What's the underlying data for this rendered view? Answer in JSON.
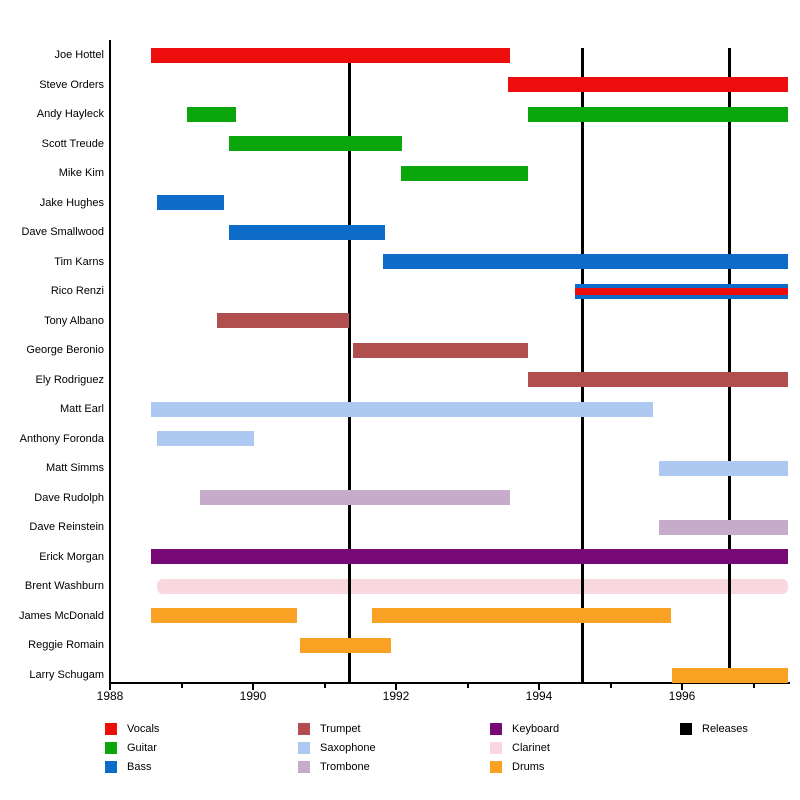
{
  "chart_data": {
    "type": "timeline",
    "description": "Band members tenure timeline (gantt-style) with instrument color coding and release marker lines",
    "x_axis": {
      "start": 1988,
      "end": 1997.5,
      "major_ticks": [
        1988,
        1990,
        1992,
        1994,
        1996
      ],
      "minor_ticks": [
        1989,
        1991,
        1993,
        1995,
        1997
      ],
      "grid": false
    },
    "releases": [
      1991.35,
      1994.61,
      1996.66
    ],
    "colors": {
      "vocals": "#ee0d0d",
      "guitar": "#0ba60b",
      "bass": "#0d6cc8",
      "trumpet": "#b14f4f",
      "saxophone": "#adc9f2",
      "trombone": "#c6abca",
      "keyboard": "#770977",
      "clarinet": "#f8d7de",
      "drums": "#f8a122",
      "releases": "#000000"
    },
    "members": [
      {
        "name": "Joe Hottel",
        "bars": [
          {
            "instrument": "vocals",
            "start": 1988.58,
            "end": 1993.59
          }
        ]
      },
      {
        "name": "Steve Orders",
        "bars": [
          {
            "instrument": "vocals",
            "start": 1993.57,
            "end": 1997.48
          }
        ]
      },
      {
        "name": "Andy Hayleck",
        "bars": [
          {
            "instrument": "guitar",
            "start": 1989.07,
            "end": 1989.76
          },
          {
            "instrument": "guitar",
            "start": 1993.85,
            "end": 1997.48
          }
        ]
      },
      {
        "name": "Scott Treude",
        "bars": [
          {
            "instrument": "guitar",
            "start": 1989.67,
            "end": 1992.09
          }
        ]
      },
      {
        "name": "Mike Kim",
        "bars": [
          {
            "instrument": "guitar",
            "start": 1992.07,
            "end": 1993.85
          }
        ]
      },
      {
        "name": "Jake Hughes",
        "bars": [
          {
            "instrument": "bass",
            "start": 1988.66,
            "end": 1989.59
          }
        ]
      },
      {
        "name": "Dave Smallwood",
        "bars": [
          {
            "instrument": "bass",
            "start": 1989.67,
            "end": 1991.85
          }
        ]
      },
      {
        "name": "Tim Karns",
        "bars": [
          {
            "instrument": "bass",
            "start": 1991.82,
            "end": 1997.48
          }
        ]
      },
      {
        "name": "Rico Renzi",
        "bars": [
          {
            "instrument": "bass",
            "start": 1994.5,
            "end": 1997.48
          },
          {
            "instrument": "vocals",
            "start": 1994.5,
            "end": 1997.48,
            "overlay": true
          }
        ]
      },
      {
        "name": "Tony Albano",
        "bars": [
          {
            "instrument": "trumpet",
            "start": 1989.49,
            "end": 1991.34
          }
        ]
      },
      {
        "name": "George Beronio",
        "bars": [
          {
            "instrument": "trumpet",
            "start": 1991.4,
            "end": 1993.85
          }
        ]
      },
      {
        "name": "Ely Rodriguez",
        "bars": [
          {
            "instrument": "trumpet",
            "start": 1993.85,
            "end": 1997.48
          }
        ]
      },
      {
        "name": "Matt Earl",
        "bars": [
          {
            "instrument": "saxophone",
            "start": 1988.58,
            "end": 1995.6
          }
        ]
      },
      {
        "name": "Anthony Foronda",
        "bars": [
          {
            "instrument": "saxophone",
            "start": 1988.66,
            "end": 1990.02
          }
        ]
      },
      {
        "name": "Matt Simms",
        "bars": [
          {
            "instrument": "saxophone",
            "start": 1995.68,
            "end": 1997.48
          }
        ]
      },
      {
        "name": "Dave Rudolph",
        "bars": [
          {
            "instrument": "trombone",
            "start": 1989.26,
            "end": 1993.59
          }
        ]
      },
      {
        "name": "Dave Reinstein",
        "bars": [
          {
            "instrument": "trombone",
            "start": 1995.68,
            "end": 1997.48
          }
        ]
      },
      {
        "name": "Erick Morgan",
        "bars": [
          {
            "instrument": "keyboard",
            "start": 1988.58,
            "end": 1997.48
          }
        ]
      },
      {
        "name": "Brent Washburn",
        "bars": [
          {
            "instrument": "clarinet",
            "start": 1988.66,
            "end": 1997.48
          }
        ]
      },
      {
        "name": "James McDonald",
        "bars": [
          {
            "instrument": "drums",
            "start": 1988.58,
            "end": 1990.62
          },
          {
            "instrument": "drums",
            "start": 1991.66,
            "end": 1995.85
          }
        ]
      },
      {
        "name": "Reggie Romain",
        "bars": [
          {
            "instrument": "drums",
            "start": 1990.66,
            "end": 1991.93
          }
        ]
      },
      {
        "name": "Larry Schugam",
        "bars": [
          {
            "instrument": "drums",
            "start": 1995.86,
            "end": 1997.48
          }
        ]
      }
    ],
    "legend": {
      "columns": [
        {
          "items": [
            {
              "label": "Vocals",
              "key": "vocals"
            },
            {
              "label": "Guitar",
              "key": "guitar"
            },
            {
              "label": "Bass",
              "key": "bass"
            }
          ]
        },
        {
          "items": [
            {
              "label": "Trumpet",
              "key": "trumpet"
            },
            {
              "label": "Saxophone",
              "key": "saxophone"
            },
            {
              "label": "Trombone",
              "key": "trombone"
            }
          ]
        },
        {
          "items": [
            {
              "label": "Keyboard",
              "key": "keyboard"
            },
            {
              "label": "Clarinet",
              "key": "clarinet"
            },
            {
              "label": "Drums",
              "key": "drums"
            }
          ]
        },
        {
          "items": [
            {
              "label": "Releases",
              "key": "releases"
            }
          ]
        }
      ]
    }
  }
}
